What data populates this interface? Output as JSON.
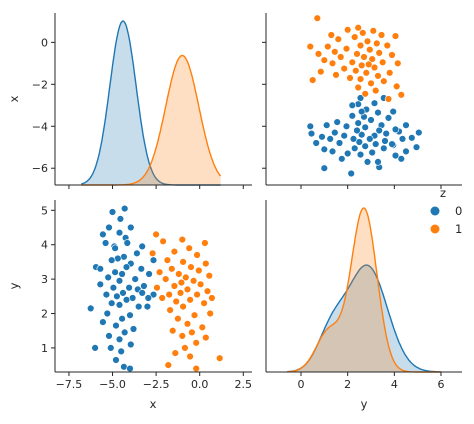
{
  "chart_data": {
    "type": "pairplot",
    "variables": [
      "x",
      "y"
    ],
    "hue": "z",
    "legend": {
      "title": "z",
      "placement": "right",
      "entries": [
        {
          "label": "0",
          "color": "#1f77b4"
        },
        {
          "label": "1",
          "color": "#ff7f0e"
        }
      ]
    },
    "axes": {
      "x": {
        "lim": [
          -8.3,
          3.0
        ],
        "ticks": [
          -7.5,
          -5.0,
          -2.5,
          0.0,
          2.5
        ],
        "tick_labels": [
          "−7.5",
          "−5.0",
          "−2.5",
          "0.0",
          "2.5"
        ]
      },
      "y": {
        "lim": [
          0.3,
          5.3
        ],
        "ticks": [
          1,
          2,
          3,
          4,
          5
        ],
        "tick_labels": [
          "1",
          "2",
          "3",
          "4",
          "5"
        ]
      },
      "x_as_rows": {
        "lim": [
          -6.8,
          1.4
        ],
        "ticks": [
          0,
          -2,
          -4,
          -6
        ],
        "tick_labels": [
          "0",
          "−2",
          "−4",
          "−6"
        ]
      },
      "y_as_columns": {
        "lim": [
          -1.5,
          6.9
        ],
        "ticks": [
          0,
          2,
          4,
          6
        ],
        "tick_labels": [
          "0",
          "2",
          "4",
          "6"
        ]
      }
    },
    "axis_labels": {
      "row_top": "x",
      "row_bottom": "y",
      "col_left": "x",
      "col_right": "y"
    },
    "kde_x": {
      "series": [
        {
          "name": "0",
          "color": "#1f77b4",
          "mean": -4.4,
          "sd": 0.75,
          "weight": 1.0
        },
        {
          "name": "1",
          "color": "#ff7f0e",
          "mean": -1.0,
          "sd": 0.95,
          "weight": 1.0
        }
      ],
      "xlim": [
        -6.8,
        1.2
      ]
    },
    "kde_y": {
      "series": [
        {
          "name": "0",
          "color": "#1f77b4",
          "components": [
            {
              "mean": 2.85,
              "sd": 0.85,
              "weight": 0.8
            },
            {
              "mean": 1.3,
              "sd": 0.6,
              "weight": 0.2
            }
          ]
        },
        {
          "name": "1",
          "color": "#ff7f0e",
          "components": [
            {
              "mean": 2.7,
              "sd": 0.55,
              "weight": 0.8
            },
            {
              "mean": 1.2,
              "sd": 0.55,
              "weight": 0.2
            }
          ]
        }
      ],
      "xlim": [
        -0.6,
        6.0
      ]
    },
    "series": [
      {
        "name": "0",
        "color": "#1f77b4",
        "points": [
          [
            -4.3,
            5.05
          ],
          [
            -5.0,
            4.95
          ],
          [
            -4.55,
            4.75
          ],
          [
            -5.2,
            4.5
          ],
          [
            -3.95,
            4.5
          ],
          [
            -4.6,
            4.35
          ],
          [
            -5.55,
            4.3
          ],
          [
            -4.25,
            4.2
          ],
          [
            -4.15,
            4.05
          ],
          [
            -5.4,
            4.05
          ],
          [
            -4.9,
            3.95
          ],
          [
            -3.3,
            3.95
          ],
          [
            -3.6,
            3.75
          ],
          [
            -4.35,
            3.65
          ],
          [
            -4.7,
            3.6
          ],
          [
            -5.05,
            3.55
          ],
          [
            -2.65,
            3.55
          ],
          [
            -3.95,
            3.45
          ],
          [
            -5.95,
            3.35
          ],
          [
            -4.2,
            3.35
          ],
          [
            -5.7,
            3.3
          ],
          [
            -3.35,
            3.3
          ],
          [
            -4.85,
            3.2
          ],
          [
            -4.45,
            3.15
          ],
          [
            -2.9,
            3.15
          ],
          [
            -5.25,
            3.05
          ],
          [
            -3.7,
            3.0
          ],
          [
            -4.6,
            2.95
          ],
          [
            -5.7,
            2.85
          ],
          [
            -3.2,
            2.8
          ],
          [
            -4.95,
            2.75
          ],
          [
            -4.05,
            2.75
          ],
          [
            -3.55,
            2.7
          ],
          [
            -4.4,
            2.6
          ],
          [
            -5.35,
            2.55
          ],
          [
            -2.65,
            2.55
          ],
          [
            -4.75,
            2.5
          ],
          [
            -3.85,
            2.45
          ],
          [
            -4.2,
            2.4
          ],
          [
            -2.95,
            2.45
          ],
          [
            -5.05,
            2.3
          ],
          [
            -4.6,
            2.25
          ],
          [
            -3.5,
            2.2
          ],
          [
            -6.25,
            2.15
          ],
          [
            -5.3,
            2.0
          ],
          [
            -4.0,
            1.95
          ],
          [
            -4.45,
            1.85
          ],
          [
            -5.55,
            1.75
          ],
          [
            -4.8,
            1.65
          ],
          [
            -3.8,
            1.55
          ],
          [
            -4.3,
            1.45
          ],
          [
            -5.2,
            1.35
          ],
          [
            -4.6,
            1.25
          ],
          [
            -3.95,
            1.1
          ],
          [
            -6.0,
            1.0
          ],
          [
            -5.1,
            1.0
          ],
          [
            -4.5,
            0.9
          ],
          [
            -4.8,
            0.65
          ],
          [
            -4.35,
            0.45
          ],
          [
            -4.0,
            0.4
          ],
          [
            -3.3,
            2.6
          ],
          [
            -3.0,
            2.2
          ],
          [
            -4.85,
            3.9
          ]
        ]
      },
      {
        "name": "1",
        "color": "#ff7f0e",
        "points": [
          [
            -2.5,
            4.3
          ],
          [
            -2.1,
            4.1
          ],
          [
            -1.0,
            4.15
          ],
          [
            0.3,
            4.05
          ],
          [
            -0.6,
            3.9
          ],
          [
            -1.45,
            3.8
          ],
          [
            -2.7,
            3.75
          ],
          [
            -0.15,
            3.7
          ],
          [
            -1.85,
            3.55
          ],
          [
            -0.95,
            3.5
          ],
          [
            0.35,
            3.45
          ],
          [
            -0.5,
            3.35
          ],
          [
            -1.6,
            3.3
          ],
          [
            -2.3,
            3.2
          ],
          [
            -0.05,
            3.25
          ],
          [
            -1.2,
            3.15
          ],
          [
            0.55,
            3.1
          ],
          [
            -0.8,
            3.05
          ],
          [
            -1.95,
            3.0
          ],
          [
            -0.35,
            2.95
          ],
          [
            0.05,
            2.85
          ],
          [
            -1.45,
            2.8
          ],
          [
            -2.45,
            2.75
          ],
          [
            -0.7,
            2.7
          ],
          [
            0.45,
            2.65
          ],
          [
            -1.1,
            2.6
          ],
          [
            -1.75,
            2.55
          ],
          [
            -0.15,
            2.55
          ],
          [
            0.7,
            2.45
          ],
          [
            -2.15,
            2.45
          ],
          [
            -0.55,
            2.4
          ],
          [
            -1.35,
            2.35
          ],
          [
            0.25,
            2.3
          ],
          [
            -0.95,
            2.2
          ],
          [
            -1.7,
            2.1
          ],
          [
            0.6,
            2.0
          ],
          [
            -0.3,
            1.95
          ],
          [
            -1.25,
            1.85
          ],
          [
            -0.7,
            1.7
          ],
          [
            0.15,
            1.6
          ],
          [
            -1.55,
            1.5
          ],
          [
            -0.45,
            1.45
          ],
          [
            -1.0,
            1.35
          ],
          [
            0.35,
            1.3
          ],
          [
            -0.2,
            1.15
          ],
          [
            -0.85,
            1.0
          ],
          [
            -1.4,
            0.85
          ],
          [
            -0.55,
            0.75
          ],
          [
            1.15,
            0.7
          ],
          [
            -1.8,
            0.5
          ],
          [
            -0.2,
            0.4
          ],
          [
            -1.05,
            2.9
          ]
        ]
      }
    ]
  }
}
